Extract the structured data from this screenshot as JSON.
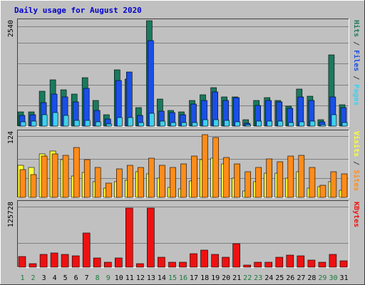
{
  "chart_data": {
    "type": "bar",
    "title": "Daily usage for August 2020",
    "categories": [
      "1",
      "2",
      "3",
      "4",
      "5",
      "6",
      "7",
      "8",
      "9",
      "10",
      "11",
      "12",
      "13",
      "14",
      "15",
      "16",
      "17",
      "18",
      "19",
      "20",
      "21",
      "22",
      "23",
      "24",
      "25",
      "26",
      "27",
      "28",
      "29",
      "30",
      "31"
    ],
    "weekend_days": [
      "1",
      "2",
      "8",
      "9",
      "15",
      "16",
      "22",
      "23",
      "29",
      "30"
    ],
    "colors": {
      "hits": "#1a7a5e",
      "files": "#1a4fe6",
      "pages": "#3fd0f0",
      "visits": "#ffff33",
      "sites": "#ff8c1a",
      "kbytes": "#ee1111",
      "title": "#0000cc",
      "weekday_label": "#000000",
      "weekend_label": "#1a7a3a",
      "panel_bg": "#c0c0c0",
      "gridline": "#808080"
    },
    "panels": [
      {
        "ymax_label": "2540",
        "ymax": 2540,
        "label_parts": [
          {
            "text": "Pages",
            "color": "#3fd0f0"
          },
          {
            "text": " / ",
            "color": "#404040"
          },
          {
            "text": "Files",
            "color": "#1a4fe6"
          },
          {
            "text": " / ",
            "color": "#404040"
          },
          {
            "text": "Hits",
            "color": "#1a7a5e"
          }
        ],
        "series": [
          {
            "name": "Hits",
            "color": "#1a7a5e",
            "values": [
              340,
              340,
              840,
              1120,
              870,
              770,
              1160,
              610,
              280,
              1350,
              1140,
              440,
              2540,
              650,
              380,
              340,
              610,
              760,
              920,
              700,
              700,
              150,
              620,
              680,
              620,
              480,
              890,
              720,
              160,
              1720,
              510
            ]
          },
          {
            "name": "Files",
            "color": "#1a4fe6",
            "values": [
              260,
              280,
              570,
              780,
              700,
              590,
              910,
              380,
              170,
              1100,
              1300,
              260,
              2060,
              360,
              320,
              280,
              530,
              620,
              820,
              620,
              680,
              70,
              500,
              620,
              580,
              430,
              710,
              620,
              100,
              700,
              440
            ]
          },
          {
            "name": "Pages",
            "color": "#3fd0f0",
            "values": [
              100,
              120,
              280,
              320,
              260,
              130,
              130,
              100,
              60,
              200,
              200,
              90,
              310,
              120,
              90,
              80,
              90,
              160,
              150,
              140,
              100,
              30,
              120,
              120,
              120,
              90,
              110,
              120,
              40,
              270,
              80
            ]
          }
        ]
      },
      {
        "ymax_label": "124",
        "ymax": 124,
        "label_parts": [
          {
            "text": "Sites",
            "color": "#ff8c1a"
          },
          {
            "text": " / ",
            "color": "#404040"
          },
          {
            "text": "Visits",
            "color": "#ffff33"
          }
        ],
        "series": [
          {
            "name": "Visits",
            "color": "#ffff33",
            "values": [
              60,
              57,
              82,
              88,
              72,
              40,
              47,
              29,
              17,
              30,
              33,
              49,
              44,
              37,
              19,
              16,
              31,
              71,
              74,
              64,
              36,
              12,
              29,
              46,
              46,
              37,
              49,
              18,
              20,
              30,
              14
            ]
          },
          {
            "name": "Sites",
            "color": "#ff8c1a",
            "values": [
              53,
              43,
              78,
              82,
              80,
              94,
              72,
              56,
              27,
              54,
              60,
              57,
              74,
              60,
              57,
              64,
              78,
              118,
              113,
              76,
              64,
              49,
              57,
              73,
              67,
              78,
              80,
              57,
              23,
              48,
              44
            ]
          }
        ]
      },
      {
        "ymax_label": "125728",
        "ymax": 125728,
        "label_parts": [
          {
            "text": "KBytes",
            "color": "#ee1111"
          }
        ],
        "series": [
          {
            "name": "KBytes",
            "color": "#ee1111",
            "values": [
              21000,
              7000,
              25000,
              27000,
              25000,
              22000,
              66000,
              18000,
              10000,
              18000,
              114000,
              7000,
              115000,
              20000,
              10000,
              10000,
              26000,
              33000,
              25000,
              19000,
              46000,
              4000,
              10000,
              10000,
              20000,
              24000,
              22000,
              14000,
              10000,
              25000,
              12000
            ]
          }
        ]
      }
    ]
  }
}
